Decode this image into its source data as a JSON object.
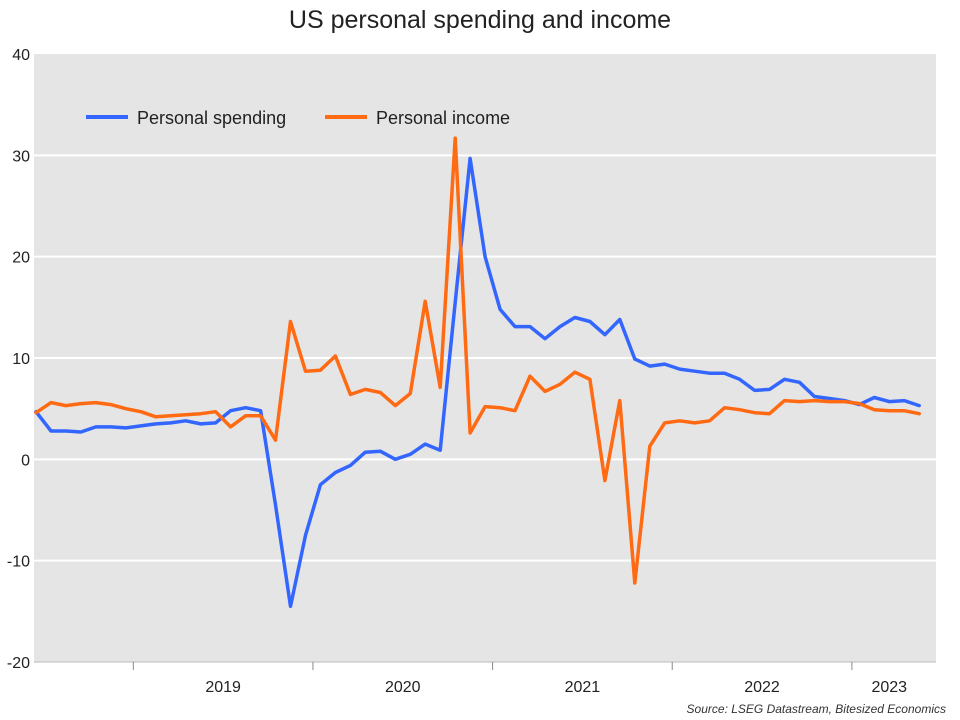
{
  "title": "US personal spending and income",
  "source": "Source: LSEG Datastream, Bitesized Economics",
  "colors": {
    "spending": "#3366ff",
    "income": "#ff6a13",
    "plot_bg": "#e5e5e5",
    "grid": "#ffffff"
  },
  "chart_data": {
    "type": "line",
    "title": "US personal spending and income",
    "xlabel": "",
    "ylabel": "",
    "ylim": [
      -20,
      40
    ],
    "yticks": [
      -20,
      -10,
      0,
      10,
      20,
      30,
      40
    ],
    "xticks": [
      "2019",
      "2020",
      "2021",
      "2022",
      "2023"
    ],
    "start": "2018-06",
    "frequency": "monthly",
    "legend": "top-left",
    "series": [
      {
        "name": "Personal spending",
        "color": "#3366ff",
        "values": [
          4.7,
          2.8,
          2.8,
          2.7,
          3.2,
          3.2,
          3.1,
          3.3,
          3.5,
          3.6,
          3.8,
          3.5,
          3.6,
          4.8,
          5.1,
          4.8,
          -4.5,
          -14.5,
          -7.5,
          -2.5,
          -1.3,
          -0.6,
          0.7,
          0.8,
          0.0,
          0.5,
          1.5,
          0.9,
          15.5,
          29.7,
          20.0,
          14.8,
          13.1,
          13.1,
          11.9,
          13.1,
          14.0,
          13.6,
          12.3,
          13.8,
          9.9,
          9.2,
          9.4,
          8.9,
          8.7,
          8.5,
          8.5,
          7.9,
          6.8,
          6.9,
          7.9,
          7.6,
          6.2,
          6.0,
          5.8,
          5.4,
          6.1,
          5.7,
          5.8,
          5.3
        ]
      },
      {
        "name": "Personal income",
        "color": "#ff6a13",
        "values": [
          4.6,
          5.6,
          5.3,
          5.5,
          5.6,
          5.4,
          5.0,
          4.7,
          4.2,
          4.3,
          4.4,
          4.5,
          4.7,
          3.2,
          4.3,
          4.3,
          1.9,
          13.6,
          8.7,
          8.8,
          10.2,
          6.4,
          6.9,
          6.6,
          5.3,
          6.5,
          15.6,
          7.1,
          31.7,
          2.6,
          5.2,
          5.1,
          4.8,
          8.2,
          6.7,
          7.4,
          8.6,
          7.9,
          -2.1,
          5.8,
          -12.2,
          1.3,
          3.6,
          3.8,
          3.6,
          3.8,
          5.1,
          4.9,
          4.6,
          4.5,
          5.8,
          5.7,
          5.8,
          5.7,
          5.7,
          5.5,
          4.9,
          4.8,
          4.8,
          4.5
        ]
      }
    ]
  }
}
